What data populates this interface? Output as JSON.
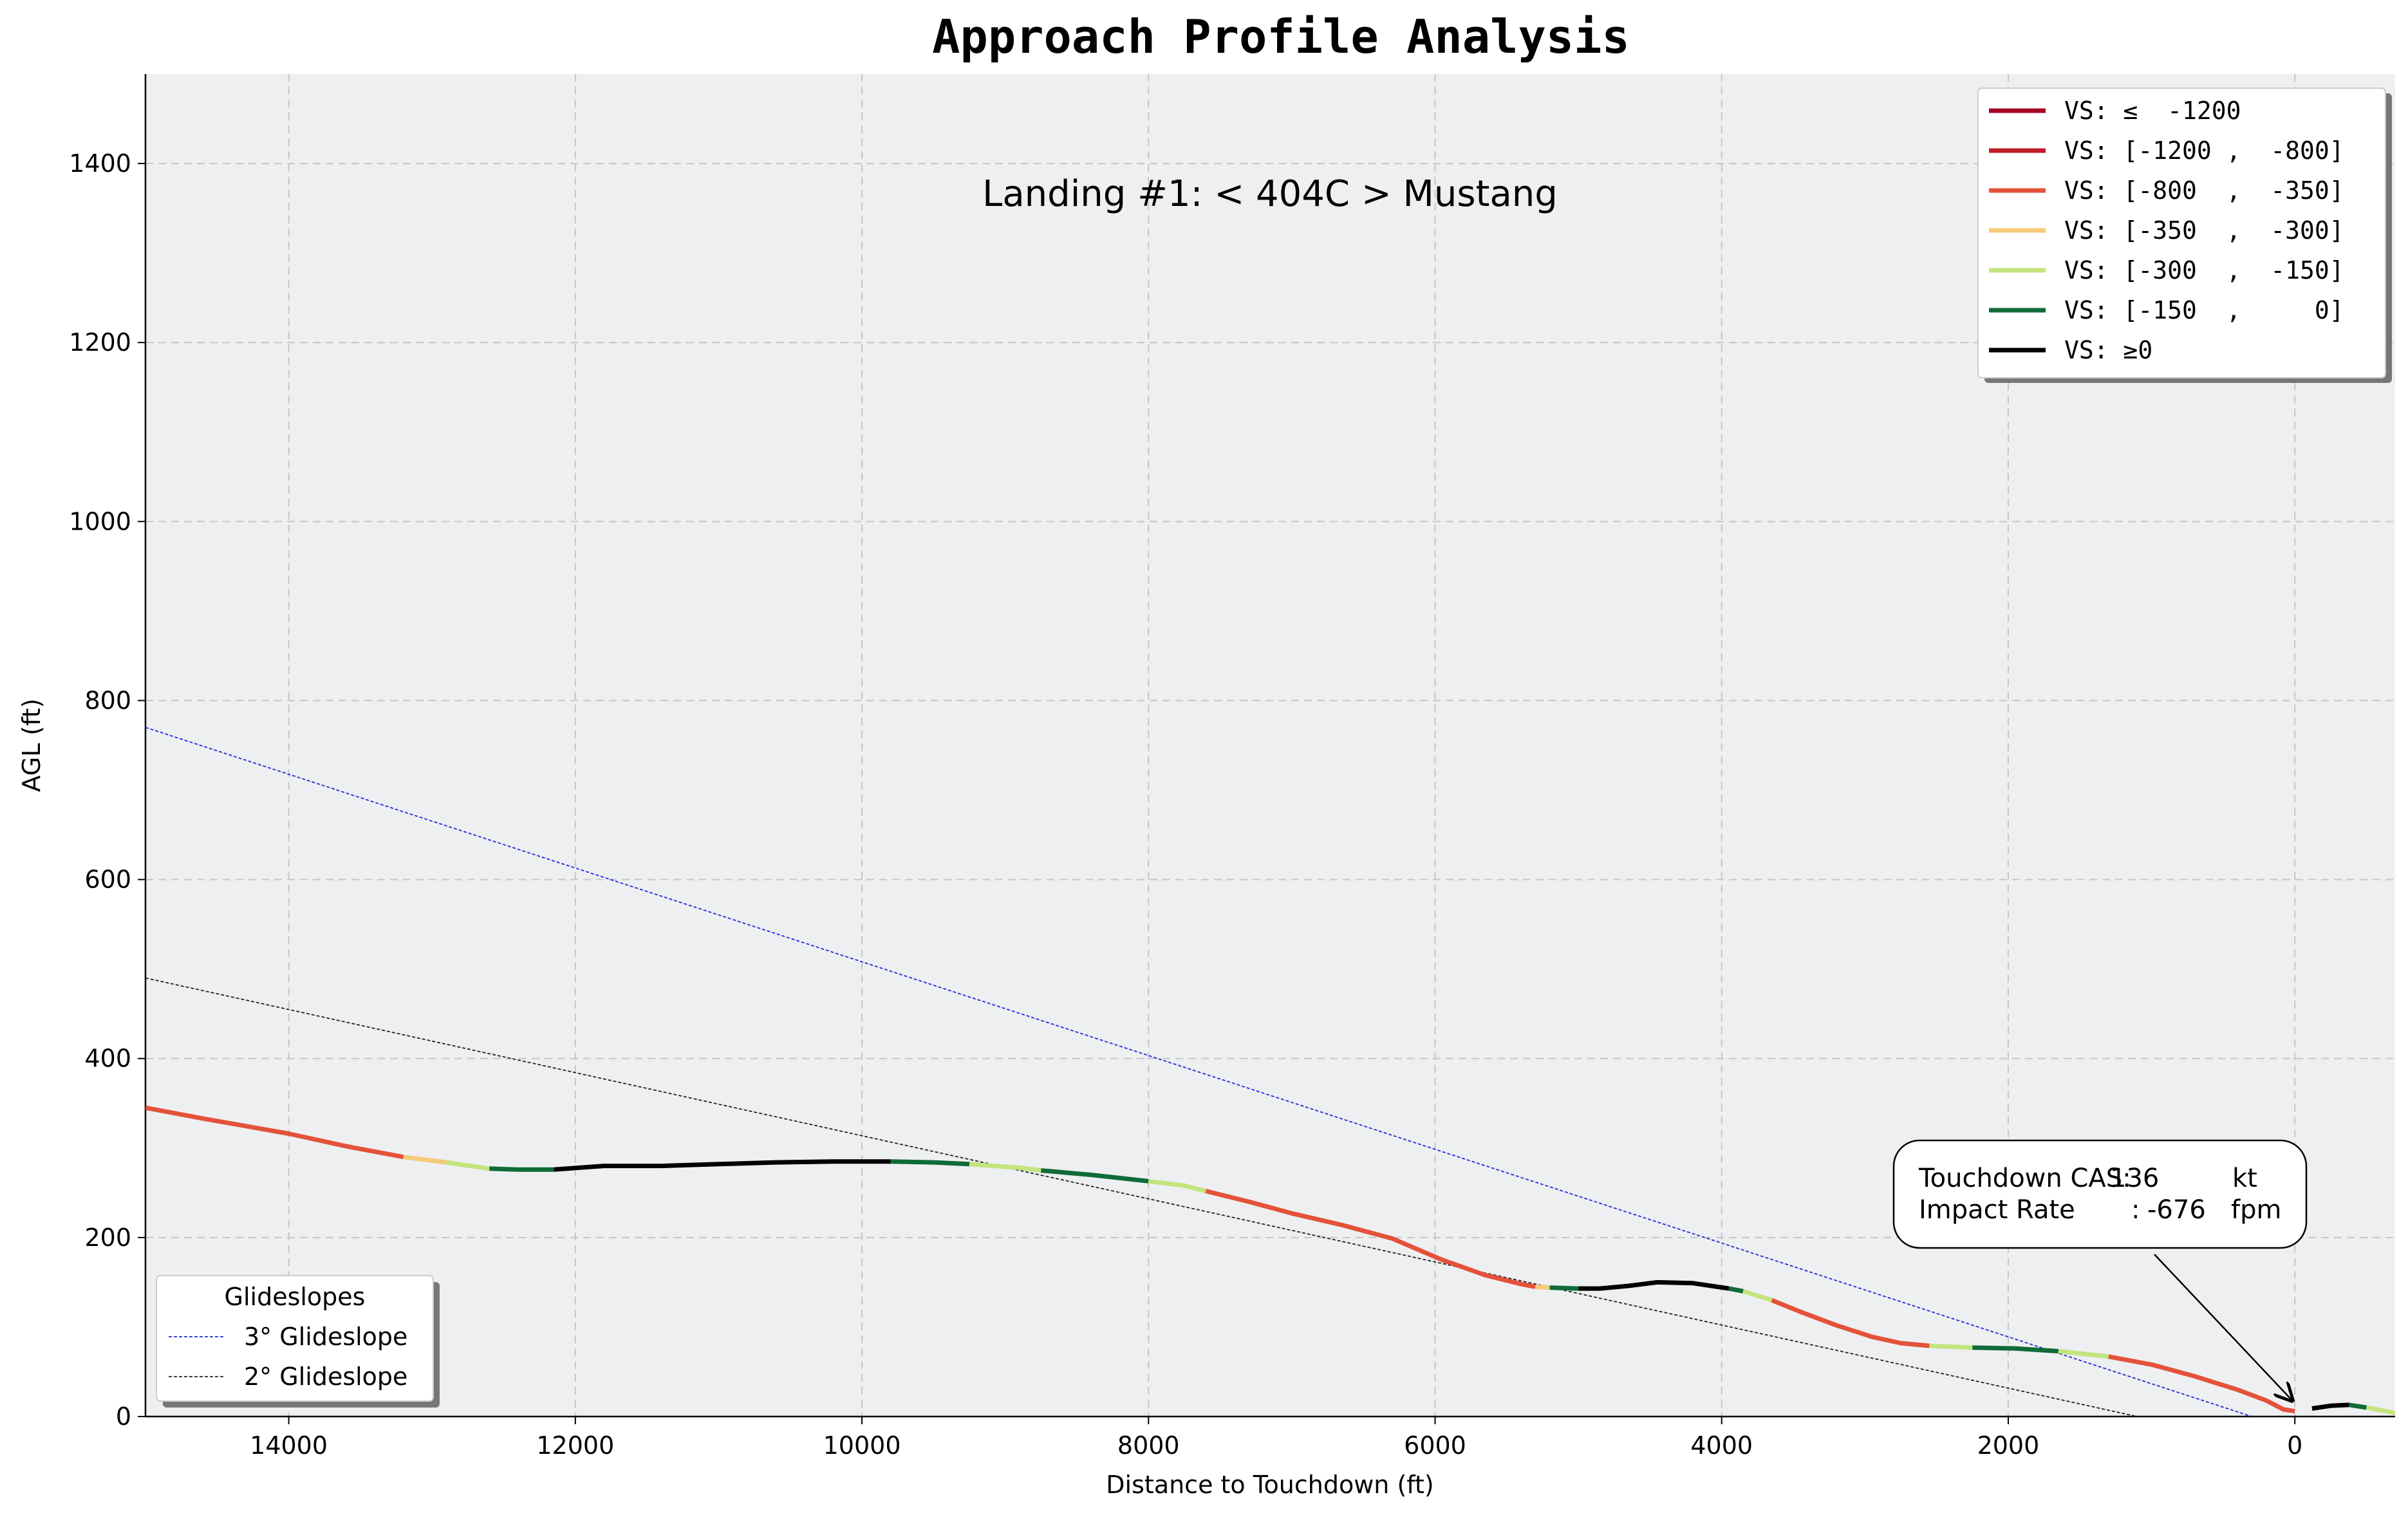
{
  "chart_data": {
    "type": "line",
    "title": "Approach Profile Analysis",
    "subtitle": "Landing #1: < 404C > Mustang",
    "xlabel": "Distance to Touchdown (ft)",
    "ylabel": "AGL (ft)",
    "xlim": [
      15000,
      -700
    ],
    "ylim": [
      0,
      1500
    ],
    "x_ticks": [
      "14000",
      "12000",
      "10000",
      "8000",
      "6000",
      "4000",
      "2000",
      "0"
    ],
    "x_tick_values": [
      14000,
      12000,
      10000,
      8000,
      6000,
      4000,
      2000,
      0
    ],
    "y_ticks": [
      "0",
      "200",
      "400",
      "600",
      "800",
      "1000",
      "1200",
      "1400"
    ],
    "y_tick_values": [
      0,
      200,
      400,
      600,
      800,
      1000,
      1200,
      1400
    ],
    "grid": true,
    "legend_vs_placement": "top-right",
    "legend_glideslope_placement": "bottom-left",
    "vs_legend": [
      {
        "label": "VS: ≤  -1200",
        "color": "#a50026"
      },
      {
        "label": "VS: [-1200 ,  -800]",
        "color": "#c21c27"
      },
      {
        "label": "VS: [-800  ,  -350]",
        "color": "#e4523a"
      },
      {
        "label": "VS: [-350  ,  -300]",
        "color": "#f7c97a"
      },
      {
        "label": "VS: [-300  ,  -150]",
        "color": "#c3e47e"
      },
      {
        "label": "VS: [-150  ,     0]",
        "color": "#0f6b38"
      },
      {
        "label": "VS: ≥0",
        "color": "#000000"
      }
    ],
    "glideslope_legend_title": "Glideslopes",
    "glideslopes": [
      {
        "name": "3° Glideslope",
        "color": "#1f2bd6",
        "points": [
          [
            15000,
            770
          ],
          [
            300,
            0
          ]
        ]
      },
      {
        "name": "2° Glideslope",
        "color": "#222222",
        "points": [
          [
            15000,
            490
          ],
          [
            1100,
            0
          ]
        ]
      }
    ],
    "profile_segments": [
      {
        "color": "#e4523a",
        "points": [
          [
            15000,
            345
          ],
          [
            14600,
            333
          ],
          [
            14000,
            316
          ],
          [
            13600,
            302
          ],
          [
            13200,
            290
          ]
        ]
      },
      {
        "color": "#f7c97a",
        "points": [
          [
            13200,
            290
          ],
          [
            12900,
            284
          ]
        ]
      },
      {
        "color": "#c3e47e",
        "points": [
          [
            12900,
            284
          ],
          [
            12600,
            277
          ]
        ]
      },
      {
        "color": "#0f6b38",
        "points": [
          [
            12600,
            277
          ],
          [
            12400,
            276
          ],
          [
            12150,
            276
          ]
        ]
      },
      {
        "color": "#000000",
        "points": [
          [
            12150,
            276
          ],
          [
            11800,
            280
          ],
          [
            11400,
            280
          ],
          [
            11000,
            282
          ],
          [
            10600,
            284
          ],
          [
            10200,
            285
          ],
          [
            9800,
            285
          ]
        ]
      },
      {
        "color": "#0f6b38",
        "points": [
          [
            9800,
            285
          ],
          [
            9500,
            284
          ],
          [
            9250,
            282
          ]
        ]
      },
      {
        "color": "#c3e47e",
        "points": [
          [
            9250,
            282
          ],
          [
            8900,
            278
          ],
          [
            8750,
            275
          ]
        ]
      },
      {
        "color": "#0f6b38",
        "points": [
          [
            8750,
            275
          ],
          [
            8400,
            270
          ],
          [
            8000,
            263
          ]
        ]
      },
      {
        "color": "#c3e47e",
        "points": [
          [
            8000,
            263
          ],
          [
            7750,
            258
          ],
          [
            7600,
            252
          ]
        ]
      },
      {
        "color": "#e4523a",
        "points": [
          [
            7600,
            252
          ],
          [
            7300,
            240
          ],
          [
            7000,
            227
          ],
          [
            6650,
            214
          ],
          [
            6300,
            199
          ],
          [
            5950,
            175
          ],
          [
            5650,
            158
          ],
          [
            5400,
            148
          ],
          [
            5300,
            145
          ]
        ]
      },
      {
        "color": "#f7c97a",
        "points": [
          [
            5300,
            145
          ],
          [
            5200,
            144
          ]
        ]
      },
      {
        "color": "#0f6b38",
        "points": [
          [
            5200,
            144
          ],
          [
            5000,
            143
          ]
        ]
      },
      {
        "color": "#000000",
        "points": [
          [
            5000,
            143
          ],
          [
            4850,
            143
          ],
          [
            4650,
            146
          ],
          [
            4450,
            150
          ],
          [
            4200,
            149
          ],
          [
            3950,
            143
          ]
        ]
      },
      {
        "color": "#0f6b38",
        "points": [
          [
            3950,
            143
          ],
          [
            3850,
            140
          ]
        ]
      },
      {
        "color": "#c3e47e",
        "points": [
          [
            3850,
            140
          ],
          [
            3650,
            130
          ]
        ]
      },
      {
        "color": "#e4523a",
        "points": [
          [
            3650,
            130
          ],
          [
            3450,
            117
          ],
          [
            3200,
            102
          ],
          [
            2950,
            89
          ],
          [
            2750,
            82
          ],
          [
            2550,
            79
          ]
        ]
      },
      {
        "color": "#c3e47e",
        "points": [
          [
            2550,
            79
          ],
          [
            2250,
            77
          ]
        ]
      },
      {
        "color": "#0f6b38",
        "points": [
          [
            2250,
            77
          ],
          [
            1950,
            76
          ],
          [
            1650,
            73
          ]
        ]
      },
      {
        "color": "#c3e47e",
        "points": [
          [
            1650,
            73
          ],
          [
            1300,
            67
          ]
        ]
      },
      {
        "color": "#e4523a",
        "points": [
          [
            1300,
            67
          ],
          [
            1000,
            58
          ],
          [
            700,
            45
          ],
          [
            400,
            30
          ],
          [
            200,
            18
          ],
          [
            80,
            8
          ],
          [
            0,
            6
          ]
        ]
      },
      {
        "color": "#000000",
        "points": [
          [
            -120,
            9
          ],
          [
            -250,
            12
          ],
          [
            -380,
            13
          ]
        ]
      },
      {
        "color": "#0f6b38",
        "points": [
          [
            -380,
            13
          ],
          [
            -500,
            10
          ]
        ]
      },
      {
        "color": "#c3e47e",
        "points": [
          [
            -500,
            10
          ],
          [
            -700,
            4
          ]
        ]
      }
    ],
    "annotation": {
      "line1_label": "Touchdown CAS:",
      "line1_value": "136",
      "line1_unit": "kt",
      "line2_label": "Impact Rate",
      "line2_colon": ":",
      "line2_value": "-676",
      "line2_unit": "fpm",
      "arrow_target": [
        0,
        15
      ]
    }
  }
}
